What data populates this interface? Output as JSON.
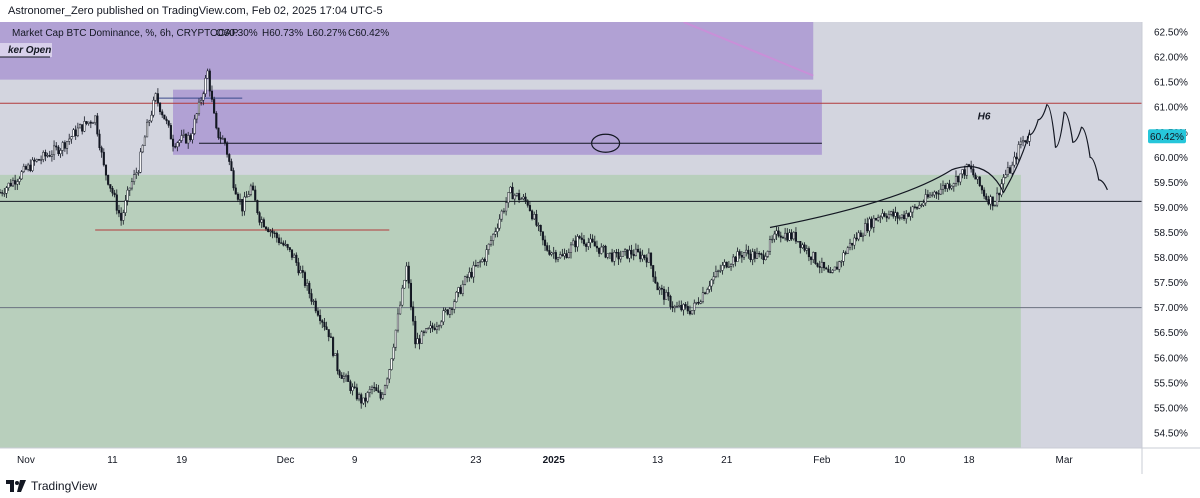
{
  "header": {
    "publisher_line": "Astronomer_Zero published on TradingView.com, Feb 02, 2025 17:04 UTC-5"
  },
  "footer": {
    "brand": "TradingView"
  },
  "colors": {
    "chart_bg": "#d3d5df",
    "green_zone": "#b6cfb9",
    "purple_zone": "#a58fd0",
    "resistance_line": "#b23b3b",
    "candle": "#131722",
    "price_badge": "#26c6da"
  },
  "chart_data": {
    "type": "candlestick",
    "legend": {
      "symbol": "Market Cap BTC Dominance, %, 6h, CRYPTOCAP",
      "open": "O60.30%",
      "high": "H60.73%",
      "low": "L60.27%",
      "close": "C60.42%"
    },
    "zone_label": "ker Open",
    "annotation": "H6",
    "last_price_label": "60.42%",
    "last_price": 60.42,
    "ylim": [
      54.2,
      62.7
    ],
    "y_ticks": [
      {
        "value": 62.5,
        "label": "62.50%"
      },
      {
        "value": 62.0,
        "label": "62.00%"
      },
      {
        "value": 61.5,
        "label": "61.50%"
      },
      {
        "value": 61.0,
        "label": "61.00%"
      },
      {
        "value": 60.5,
        "label": "60.50%"
      },
      {
        "value": 60.0,
        "label": "60.00%"
      },
      {
        "value": 59.5,
        "label": "59.50%"
      },
      {
        "value": 59.0,
        "label": "59.00%"
      },
      {
        "value": 58.5,
        "label": "58.50%"
      },
      {
        "value": 58.0,
        "label": "58.00%"
      },
      {
        "value": 57.5,
        "label": "57.50%"
      },
      {
        "value": 57.0,
        "label": "57.00%"
      },
      {
        "value": 56.5,
        "label": "56.50%"
      },
      {
        "value": 56.0,
        "label": "56.00%"
      },
      {
        "value": 55.5,
        "label": "55.50%"
      },
      {
        "value": 55.0,
        "label": "55.00%"
      },
      {
        "value": 54.5,
        "label": "54.50%"
      }
    ],
    "xlim": [
      "2024-10-29",
      "2025-03-10"
    ],
    "x_ticks": [
      {
        "date": "2024-11-01",
        "label": "Nov",
        "bold": false
      },
      {
        "date": "2024-11-11",
        "label": "11",
        "bold": false
      },
      {
        "date": "2024-11-19",
        "label": "19",
        "bold": false
      },
      {
        "date": "2024-12-01",
        "label": "Dec",
        "bold": false
      },
      {
        "date": "2024-12-09",
        "label": "9",
        "bold": false
      },
      {
        "date": "2024-12-23",
        "label": "23",
        "bold": false
      },
      {
        "date": "2025-01-01",
        "label": "2025",
        "bold": true
      },
      {
        "date": "2025-01-13",
        "label": "13",
        "bold": false
      },
      {
        "date": "2025-01-21",
        "label": "21",
        "bold": false
      },
      {
        "date": "2025-02-01",
        "label": "Feb",
        "bold": false
      },
      {
        "date": "2025-02-10",
        "label": "10",
        "bold": false
      },
      {
        "date": "2025-02-18",
        "label": "18",
        "bold": false
      },
      {
        "date": "2025-03-01",
        "label": "Mar",
        "bold": false
      }
    ],
    "zones": [
      {
        "name": "upper-supply-zone",
        "x_start": "2024-10-29",
        "x_end": "2025-01-31",
        "y_low": 61.55,
        "y_high": 62.7
      },
      {
        "name": "supply-zone",
        "x_start": "2024-11-18",
        "x_end": "2025-02-01",
        "y_low": 60.05,
        "y_high": 61.35
      },
      {
        "name": "demand-zone",
        "x_start": "2024-10-29",
        "x_end": "2025-02-24",
        "y_low": 54.2,
        "y_high": 59.65
      }
    ],
    "horizontal_lines": [
      {
        "name": "resistance-line",
        "y": 61.08,
        "x_start": "2024-10-29",
        "x_end": "2025-03-10",
        "color": "#b23b3b"
      },
      {
        "name": "support-line",
        "y": 59.12,
        "x_start": "2024-10-29",
        "x_end": "2025-03-10",
        "color": "#131722"
      },
      {
        "name": "mid-line",
        "y": 60.28,
        "x_start": "2024-11-21",
        "x_end": "2025-02-01",
        "color": "#131722"
      },
      {
        "name": "lower-grey-line",
        "y": 57.0,
        "x_start": "2024-10-29",
        "x_end": "2025-03-10",
        "color": "#6b7280"
      },
      {
        "name": "low-level-line",
        "y": 58.55,
        "x_start": "2024-11-09",
        "x_end": "2024-12-13",
        "color": "#b23b3b"
      },
      {
        "name": "high-level-line",
        "y": 61.18,
        "x_start": "2024-11-16",
        "x_end": "2024-11-26",
        "color": "#3b4a8c"
      }
    ],
    "price_anchors": [
      [
        "2024-10-29",
        59.3
      ],
      [
        "2024-11-02",
        59.9
      ],
      [
        "2024-11-05",
        60.2
      ],
      [
        "2024-11-07",
        60.55
      ],
      [
        "2024-11-09",
        60.8
      ],
      [
        "2024-11-10",
        59.8
      ],
      [
        "2024-11-11",
        59.3
      ],
      [
        "2024-11-12",
        58.75
      ],
      [
        "2024-11-13",
        59.4
      ],
      [
        "2024-11-14",
        59.8
      ],
      [
        "2024-11-15",
        60.6
      ],
      [
        "2024-11-16",
        61.2
      ],
      [
        "2024-11-17",
        60.8
      ],
      [
        "2024-11-18",
        60.3
      ],
      [
        "2024-11-20",
        60.4
      ],
      [
        "2024-11-21",
        61.0
      ],
      [
        "2024-11-22",
        61.7
      ],
      [
        "2024-11-23",
        60.5
      ],
      [
        "2024-11-24",
        60.3
      ],
      [
        "2024-11-25",
        59.5
      ],
      [
        "2024-11-26",
        59.0
      ],
      [
        "2024-11-27",
        59.4
      ],
      [
        "2024-11-28",
        58.8
      ],
      [
        "2024-11-30",
        58.4
      ],
      [
        "2024-12-02",
        58.0
      ],
      [
        "2024-12-04",
        57.2
      ],
      [
        "2024-12-06",
        56.5
      ],
      [
        "2024-12-07",
        55.8
      ],
      [
        "2024-12-09",
        55.3
      ],
      [
        "2024-12-10",
        55.1
      ],
      [
        "2024-12-11",
        55.4
      ],
      [
        "2024-12-12",
        55.2
      ],
      [
        "2024-12-13",
        55.8
      ],
      [
        "2024-12-14",
        56.8
      ],
      [
        "2024-12-15",
        57.8
      ],
      [
        "2024-12-16",
        56.3
      ],
      [
        "2024-12-18",
        56.6
      ],
      [
        "2024-12-20",
        57.0
      ],
      [
        "2024-12-22",
        57.6
      ],
      [
        "2024-12-24",
        58.0
      ],
      [
        "2024-12-26",
        58.9
      ],
      [
        "2024-12-27",
        59.3
      ],
      [
        "2024-12-29",
        59.1
      ],
      [
        "2024-12-31",
        58.2
      ],
      [
        "2025-01-02",
        58.0
      ],
      [
        "2025-01-04",
        58.4
      ],
      [
        "2025-01-06",
        58.2
      ],
      [
        "2025-01-08",
        58.0
      ],
      [
        "2025-01-10",
        58.1
      ],
      [
        "2025-01-12",
        58.0
      ],
      [
        "2025-01-13",
        57.4
      ],
      [
        "2025-01-15",
        57.0
      ],
      [
        "2025-01-17",
        56.95
      ],
      [
        "2025-01-19",
        57.5
      ],
      [
        "2025-01-21",
        57.9
      ],
      [
        "2025-01-23",
        58.1
      ],
      [
        "2025-01-25",
        58.0
      ],
      [
        "2025-01-27",
        58.5
      ],
      [
        "2025-01-29",
        58.4
      ],
      [
        "2025-01-31",
        58.0
      ],
      [
        "2025-02-02",
        57.6
      ],
      [
        "2025-02-04",
        58.2
      ],
      [
        "2025-02-06",
        58.6
      ],
      [
        "2025-02-08",
        58.9
      ],
      [
        "2025-02-10",
        58.8
      ],
      [
        "2025-02-12",
        59.0
      ],
      [
        "2025-02-14",
        59.3
      ],
      [
        "2025-02-16",
        59.5
      ],
      [
        "2025-02-18",
        59.8
      ],
      [
        "2025-02-20",
        59.2
      ],
      [
        "2025-02-21",
        59.1
      ],
      [
        "2025-02-22",
        59.6
      ],
      [
        "2025-02-23",
        59.8
      ],
      [
        "2025-02-24",
        60.3
      ],
      [
        "2025-02-25",
        60.42
      ]
    ],
    "projection_path": [
      [
        "2025-02-25",
        60.45
      ],
      [
        "2025-02-26",
        60.75
      ],
      [
        "2025-02-27",
        61.05
      ],
      [
        "2025-02-28",
        60.2
      ],
      [
        "2025-03-01",
        60.9
      ],
      [
        "2025-03-02",
        60.3
      ],
      [
        "2025-03-03",
        60.6
      ],
      [
        "2025-03-04",
        60.0
      ],
      [
        "2025-03-05",
        59.55
      ],
      [
        "2025-03-06",
        59.35
      ]
    ]
  }
}
